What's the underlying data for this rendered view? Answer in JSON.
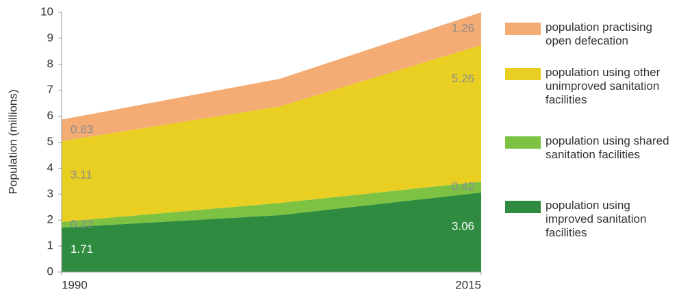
{
  "chart_data": {
    "type": "area",
    "y_label": "Population (millions)",
    "x": [
      1990,
      2003,
      2015
    ],
    "xlim": [
      1990,
      2015
    ],
    "xticks": [
      1990,
      2015
    ],
    "ylim": [
      0,
      10
    ],
    "yticks": [
      0,
      1,
      2,
      3,
      4,
      5,
      6,
      7,
      8,
      9,
      10
    ],
    "stacked": true,
    "series": [
      {
        "name": "population using improved sanitation facilities",
        "color": "#2e8b3f",
        "values": [
          1.71,
          2.19,
          3.06
        ]
      },
      {
        "name": "population using shared sanitation facilities",
        "color": "#7dc242",
        "values": [
          0.22,
          0.47,
          0.42
        ]
      },
      {
        "name": "population using other unimproved sanitation facilities",
        "color": "#e8cf22",
        "values": [
          3.11,
          3.72,
          5.26
        ]
      },
      {
        "name": "population practising open defecation",
        "color": "#f4ab74",
        "values": [
          0.83,
          1.06,
          1.26
        ]
      }
    ]
  }
}
